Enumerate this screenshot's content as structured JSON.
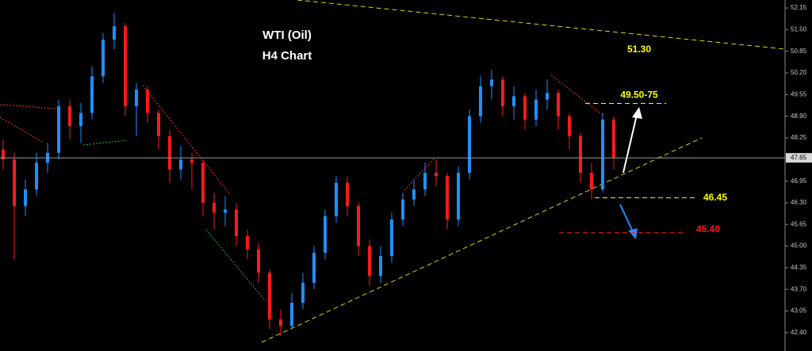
{
  "chart_data": {
    "type": "candlestick",
    "title": "WTI (Oil)",
    "subtitle": "H4 Chart",
    "bull_color": "#1e90ff",
    "bear_color": "#ff1a1a",
    "open": [
      47.9,
      47.6,
      46.2,
      46.7,
      47.5,
      47.8,
      49.2,
      48.6,
      49.0,
      50.1,
      51.2,
      51.6,
      49.2,
      49.7,
      49.0,
      48.3,
      47.3,
      47.6,
      47.5,
      46.3,
      46.0,
      46.1,
      45.3,
      44.9,
      44.2,
      42.8,
      42.6,
      43.3,
      43.9,
      44.8,
      45.9,
      46.9,
      46.2,
      45.0,
      44.1,
      44.7,
      45.8,
      46.4,
      46.7,
      47.2,
      47.1,
      45.8,
      47.2,
      48.9,
      49.8,
      50.0,
      49.2,
      49.5,
      48.8,
      49.4,
      49.6,
      48.9,
      48.3,
      47.2,
      46.7,
      48.8
    ],
    "high": [
      48.2,
      47.8,
      47.0,
      47.8,
      48.1,
      49.4,
      49.4,
      49.3,
      50.4,
      51.4,
      52.0,
      51.7,
      49.9,
      49.8,
      49.1,
      48.5,
      48.0,
      47.8,
      47.6,
      46.6,
      46.5,
      46.3,
      45.5,
      45.1,
      44.3,
      43.1,
      43.6,
      44.2,
      45.0,
      46.1,
      47.1,
      47.1,
      46.3,
      45.2,
      45.0,
      46.0,
      46.6,
      47.0,
      47.5,
      47.6,
      47.2,
      47.4,
      49.1,
      50.1,
      50.3,
      50.1,
      49.8,
      49.6,
      49.7,
      50.0,
      49.7,
      49.0,
      48.4,
      47.5,
      49.0,
      48.9
    ],
    "low": [
      47.3,
      44.6,
      45.9,
      46.5,
      47.2,
      47.6,
      48.2,
      48.1,
      48.8,
      49.9,
      50.9,
      48.9,
      48.3,
      48.7,
      47.9,
      46.9,
      47.0,
      46.7,
      45.9,
      45.5,
      45.6,
      45.0,
      44.6,
      43.9,
      42.5,
      42.3,
      42.5,
      43.1,
      43.7,
      44.6,
      45.7,
      45.9,
      44.7,
      43.8,
      43.9,
      44.5,
      45.6,
      46.2,
      46.5,
      46.8,
      45.5,
      45.6,
      47.0,
      48.7,
      49.4,
      48.9,
      48.8,
      48.5,
      48.6,
      49.1,
      48.5,
      47.9,
      46.9,
      46.4,
      46.6,
      47.3
    ],
    "close": [
      47.6,
      46.2,
      46.7,
      47.5,
      47.8,
      49.2,
      48.6,
      49.0,
      50.1,
      51.2,
      51.6,
      49.2,
      49.7,
      49.0,
      48.3,
      47.3,
      47.6,
      47.5,
      46.3,
      46.0,
      46.1,
      45.3,
      44.9,
      44.2,
      42.8,
      42.6,
      43.3,
      43.9,
      44.8,
      45.9,
      46.9,
      46.2,
      45.0,
      44.1,
      44.7,
      45.8,
      46.4,
      46.7,
      47.2,
      47.1,
      45.8,
      47.2,
      48.9,
      49.8,
      50.0,
      49.2,
      49.5,
      48.8,
      49.4,
      49.6,
      48.9,
      48.3,
      47.2,
      46.7,
      48.8,
      47.65
    ],
    "last_price": 47.65,
    "ylim": [
      41.85,
      52.39
    ],
    "yticks": [
      52.15,
      {
        "value": 51.5,
        "label": "51.50"
      },
      50.85,
      {
        "value": 50.2,
        "label": "50.20"
      },
      49.55,
      {
        "value": 48.9,
        "label": "48.90"
      },
      48.25,
      46.95,
      {
        "value": 46.3,
        "label": "46.30"
      },
      45.65,
      {
        "value": 45,
        "label": "45.00"
      },
      44.35,
      {
        "value": 43.7,
        "label": "43.70"
      },
      43.05,
      {
        "value": 42.4,
        "label": "42.40"
      }
    ],
    "levels": [
      {
        "value": 51.3,
        "label": "51.30",
        "color": "#ffff00"
      },
      {
        "value": 49.5,
        "label": "49.50-75",
        "color": "#ffff00"
      },
      {
        "value": 46.45,
        "label": "46.45",
        "color": "#ffff00"
      },
      {
        "value": 45.4,
        "label": "45.40",
        "color": "#ff1a1a"
      }
    ]
  }
}
